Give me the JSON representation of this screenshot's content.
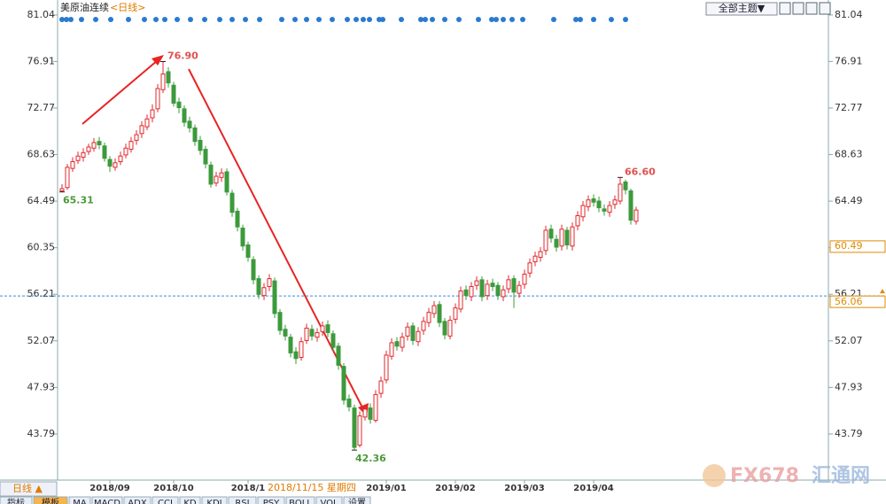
{
  "chart_data": {
    "type": "candlestick",
    "title": "美原油连续",
    "subtitle": "<日线>",
    "categories": [
      "",
      "",
      "",
      "",
      "",
      "",
      "",
      "",
      "",
      "2018/09",
      "",
      "",
      "",
      "",
      "",
      "",
      "",
      "",
      "",
      "",
      "",
      "2018/10",
      "",
      "",
      "",
      "",
      "",
      "",
      "",
      "",
      "",
      "",
      "",
      "",
      "",
      "2018/1",
      "",
      "",
      "",
      "",
      "",
      "",
      "",
      "",
      "",
      "",
      "",
      "",
      "",
      "",
      "",
      "",
      "",
      "",
      "",
      "",
      "",
      "",
      "",
      "",
      "",
      "2019/01",
      "",
      "",
      "",
      "",
      "",
      "",
      "",
      "",
      "",
      "",
      "",
      "",
      "2019/02",
      "",
      "",
      "",
      "",
      "",
      "",
      "",
      "",
      "",
      "",
      "",
      "",
      "2019/03",
      "",
      "",
      "",
      "",
      "",
      "",
      "",
      "",
      "",
      "",
      "",
      "",
      "2019/04",
      "",
      "",
      "",
      "",
      "",
      "",
      "",
      ""
    ],
    "open": [
      65.4,
      65.7,
      67.4,
      68.1,
      68.4,
      68.9,
      69.2,
      69.8,
      69.4,
      68.2,
      67.5,
      68.0,
      68.6,
      69.1,
      69.9,
      70.5,
      71.1,
      71.9,
      72.7,
      74.4,
      76.0,
      74.8,
      73.3,
      72.7,
      71.6,
      71.0,
      69.9,
      69.1,
      67.7,
      66.1,
      66.6,
      67.1,
      65.2,
      63.6,
      62.1,
      60.6,
      59.3,
      57.6,
      56.1,
      56.9,
      57.4,
      54.6,
      53.1,
      52.4,
      51.1,
      50.6,
      52.1,
      53.1,
      52.4,
      52.9,
      53.5,
      52.7,
      51.6,
      49.8,
      46.9,
      46.1,
      42.8,
      45.3,
      46.1,
      45.0,
      47.4,
      48.6,
      50.7,
      52.0,
      51.5,
      52.5,
      53.4,
      52.0,
      53.0,
      53.7,
      54.5,
      55.3,
      53.8,
      52.5,
      54.0,
      54.9,
      56.6,
      56.0,
      57.0,
      57.5,
      56.1,
      57.2,
      57.0,
      56.0,
      56.7,
      57.6,
      56.3,
      57.1,
      58.1,
      59.1,
      59.5,
      60.1,
      62.0,
      61.1,
      60.5,
      61.9,
      60.5,
      62.3,
      63.1,
      64.0,
      64.7,
      64.5,
      63.8,
      63.5,
      64.2,
      64.5,
      66.2,
      65.4,
      62.7
    ],
    "high": [
      66.0,
      67.8,
      68.4,
      68.9,
      69.2,
      69.6,
      70.1,
      70.2,
      69.7,
      68.5,
      68.3,
      68.9,
      69.6,
      70.2,
      70.8,
      71.6,
      72.2,
      73.1,
      74.9,
      76.9,
      76.4,
      75.1,
      73.7,
      73.0,
      72.0,
      71.3,
      70.3,
      69.4,
      68.0,
      67.1,
      67.4,
      67.4,
      65.5,
      63.9,
      62.4,
      60.9,
      59.6,
      57.9,
      57.2,
      58.0,
      57.7,
      54.9,
      53.5,
      52.7,
      51.5,
      52.4,
      53.6,
      53.5,
      53.2,
      53.8,
      53.9,
      53.0,
      51.9,
      50.1,
      47.3,
      46.4,
      45.8,
      46.4,
      46.5,
      47.7,
      48.9,
      51.2,
      52.3,
      52.4,
      52.8,
      53.7,
      53.7,
      53.3,
      54.2,
      55.0,
      55.6,
      55.6,
      54.1,
      54.3,
      55.4,
      56.9,
      57.0,
      57.3,
      57.8,
      57.8,
      57.5,
      57.6,
      57.3,
      57.0,
      57.9,
      57.9,
      57.4,
      58.4,
      59.4,
      60.0,
      60.4,
      62.3,
      62.4,
      61.5,
      62.4,
      62.2,
      62.6,
      63.6,
      64.5,
      65.0,
      65.1,
      64.9,
      64.2,
      64.5,
      65.0,
      66.6,
      66.4,
      65.6,
      64.0
    ],
    "low": [
      65.31,
      65.5,
      67.1,
      67.8,
      68.0,
      68.6,
      68.9,
      69.1,
      68.0,
      67.1,
      67.2,
      67.7,
      68.3,
      68.8,
      69.5,
      70.1,
      70.8,
      71.5,
      72.4,
      74.1,
      74.6,
      72.9,
      72.3,
      71.1,
      70.6,
      69.4,
      68.6,
      67.4,
      65.7,
      65.8,
      66.2,
      65.0,
      63.1,
      61.8,
      60.1,
      59.1,
      57.1,
      55.8,
      55.7,
      56.5,
      54.1,
      52.6,
      52.1,
      50.6,
      50.0,
      50.3,
      51.8,
      52.1,
      52.0,
      52.5,
      52.4,
      51.1,
      49.5,
      46.4,
      45.8,
      42.36,
      42.6,
      45.0,
      44.7,
      44.8,
      47.0,
      48.3,
      50.4,
      51.2,
      51.1,
      52.1,
      51.7,
      51.6,
      52.6,
      53.3,
      54.1,
      53.3,
      52.2,
      52.2,
      53.6,
      54.6,
      55.7,
      55.6,
      56.6,
      55.6,
      55.7,
      56.5,
      55.7,
      55.6,
      56.3,
      55.0,
      55.9,
      56.7,
      57.7,
      58.7,
      59.1,
      59.7,
      60.8,
      60.0,
      60.1,
      60.2,
      60.1,
      61.9,
      62.7,
      63.6,
      64.0,
      63.5,
      63.2,
      63.1,
      63.8,
      64.2,
      65.1,
      62.4,
      62.4
    ],
    "close": [
      65.6,
      67.5,
      68.0,
      68.5,
      68.8,
      69.3,
      69.7,
      69.5,
      68.3,
      67.6,
      67.9,
      68.5,
      69.2,
      69.8,
      70.4,
      71.2,
      71.8,
      72.6,
      74.5,
      75.8,
      75.0,
      73.2,
      72.8,
      71.5,
      71.0,
      69.8,
      69.0,
      67.8,
      66.0,
      66.7,
      67.0,
      65.3,
      63.5,
      62.2,
      60.5,
      59.5,
      57.5,
      56.2,
      56.8,
      57.6,
      54.5,
      53.0,
      52.5,
      51.0,
      50.5,
      52.0,
      53.2,
      52.5,
      52.8,
      53.4,
      52.8,
      51.5,
      49.9,
      46.8,
      46.2,
      42.6,
      45.4,
      46.0,
      45.1,
      47.3,
      48.5,
      50.8,
      51.9,
      51.6,
      52.4,
      53.3,
      52.1,
      52.9,
      53.8,
      54.6,
      55.2,
      53.7,
      52.6,
      53.9,
      55.0,
      56.5,
      56.1,
      56.9,
      57.4,
      56.0,
      57.1,
      56.9,
      56.1,
      56.6,
      57.5,
      56.4,
      57.0,
      58.0,
      59.0,
      59.6,
      60.0,
      61.9,
      61.2,
      60.4,
      62.0,
      60.6,
      62.2,
      63.2,
      64.1,
      64.6,
      64.4,
      63.9,
      63.6,
      64.1,
      64.6,
      66.0,
      65.5,
      62.8,
      63.7
    ],
    "up_color": "#e0282e",
    "down_color": "#3c9a3c",
    "ylim": [
      39.85,
      81.98
    ],
    "yticks": [
      81.04,
      76.91,
      72.77,
      68.63,
      64.49,
      60.35,
      56.21,
      52.07,
      47.93,
      43.79
    ],
    "extreme_labels": [
      {
        "series": "high",
        "value": 76.9,
        "label": "76.90"
      },
      {
        "series": "low",
        "value": 65.31,
        "label": "65.31"
      },
      {
        "series": "low",
        "value": 42.36,
        "label": "42.36"
      },
      {
        "series": "high",
        "value": 66.6,
        "label": "66.60"
      }
    ],
    "reference_line": {
      "value": 56.06,
      "label": "56.06"
    },
    "price_marker": {
      "value": 60.49,
      "label": "60.49"
    },
    "crosshair_label": "2018/11/15 星期四",
    "period_button": "日线 ▲"
  },
  "toolbar": {
    "theme_select": "全部主题▼"
  },
  "tabs": [
    "指标",
    "模板",
    "MA",
    "MACD",
    "ADX",
    "CCI",
    "KD",
    "KDJ",
    "RSI",
    "PSY",
    "BOLL",
    "VOL",
    "设置"
  ],
  "watermark": {
    "brand": "FX678",
    "name": "汇通网"
  }
}
